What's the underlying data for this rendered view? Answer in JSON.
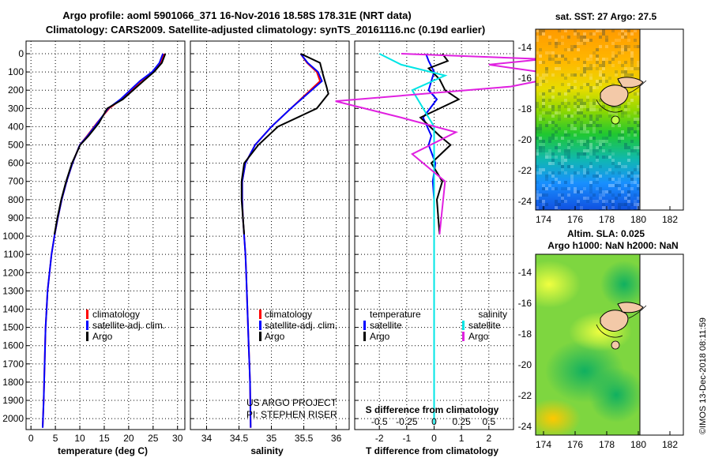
{
  "title": {
    "line1": "Argo profile: aoml 5901066_371 16-Nov-2016 18.58S 178.31E (NRT data)",
    "line2": "Climatology: CARS2009. Satellite-adjusted climatology: synTS_20161116.nc (0.19d earlier)"
  },
  "colors": {
    "climatology": "#ff0000",
    "satellite": "#0000ff",
    "argo": "#000000",
    "sat_salinity": "#00e5e5",
    "argo_salinity": "#e020e0"
  },
  "credits": {
    "project": "US ARGO PROJECT",
    "pi": "PI: STEPHEN RISER"
  },
  "watermark": "©IMOS 13-Dec-2018 08:11:59",
  "chart_data": [
    {
      "type": "line",
      "id": "temperature",
      "xlabel": "temperature (deg C)",
      "ylabel": "",
      "xlim": [
        -1,
        31.5
      ],
      "ylim": [
        2060,
        0
      ],
      "xticks": [
        0,
        5,
        10,
        15,
        20,
        25,
        30
      ],
      "yticks": [
        0,
        100,
        200,
        300,
        400,
        500,
        600,
        700,
        800,
        900,
        1000,
        1100,
        1200,
        1300,
        1400,
        1500,
        1600,
        1700,
        1800,
        1900,
        2000
      ],
      "legend": [
        "climatology",
        "satellite-adj. clim.",
        "Argo"
      ],
      "series": [
        {
          "name": "climatology",
          "x": [
            27.3,
            26.5,
            25.0,
            22.5,
            18.5,
            16.0,
            13.5,
            11.5,
            10.0,
            8.5,
            7.3,
            6.3,
            5.5,
            4.8,
            4.2,
            3.8,
            3.4,
            3.2,
            3.0,
            2.8,
            2.6,
            2.4
          ],
          "y": [
            0,
            50,
            100,
            150,
            250,
            300,
            380,
            450,
            500,
            600,
            700,
            800,
            900,
            1000,
            1100,
            1200,
            1300,
            1400,
            1500,
            1700,
            1900,
            2050
          ]
        },
        {
          "name": "satellite-adj. clim.",
          "x": [
            27.0,
            26.3,
            24.8,
            22.3,
            18.3,
            15.8,
            13.6,
            11.6,
            10.0,
            8.5,
            7.3,
            6.3,
            5.5,
            4.8,
            4.2,
            3.8,
            3.4,
            3.2,
            3.0,
            2.8,
            2.6,
            2.4
          ],
          "y": [
            0,
            50,
            100,
            150,
            250,
            300,
            380,
            450,
            500,
            600,
            700,
            800,
            900,
            1000,
            1100,
            1200,
            1300,
            1400,
            1500,
            1700,
            1900,
            2050
          ]
        },
        {
          "name": "Argo",
          "x": [
            27.5,
            26.8,
            25.2,
            23.0,
            18.8,
            15.6,
            13.9,
            11.8,
            10.1,
            8.4,
            7.2,
            6.2,
            5.4,
            4.8
          ],
          "y": [
            0,
            50,
            100,
            150,
            250,
            300,
            380,
            450,
            500,
            600,
            700,
            800,
            900,
            990
          ]
        }
      ]
    },
    {
      "type": "line",
      "id": "salinity",
      "xlabel": "salinity",
      "xlim": [
        33.75,
        36.2
      ],
      "ylim": [
        2060,
        0
      ],
      "xticks": [
        34,
        34.5,
        35,
        35.5,
        36
      ],
      "xticklabels": [
        "34",
        "34.5",
        "35",
        "35.5",
        "36"
      ],
      "legend": [
        "climatology",
        "satellite-adj. clim.",
        "Argo"
      ],
      "series": [
        {
          "name": "climatology",
          "x": [
            35.45,
            35.55,
            35.7,
            35.75,
            35.6,
            35.3,
            35.0,
            34.75,
            34.6,
            34.55,
            34.55,
            34.56,
            34.58,
            34.6,
            34.61,
            34.62,
            34.63,
            34.64,
            34.65,
            34.66,
            34.67,
            34.68
          ],
          "y": [
            0,
            50,
            100,
            150,
            200,
            300,
            400,
            500,
            600,
            700,
            800,
            900,
            1000,
            1100,
            1200,
            1300,
            1400,
            1500,
            1600,
            1700,
            1800,
            2050
          ]
        },
        {
          "name": "satellite-adj. clim.",
          "x": [
            35.45,
            35.56,
            35.72,
            35.78,
            35.62,
            35.3,
            35.0,
            34.75,
            34.6,
            34.55,
            34.55,
            34.56,
            34.58,
            34.6,
            34.61,
            34.62,
            34.63,
            34.64,
            34.65,
            34.66,
            34.67,
            34.68
          ],
          "y": [
            0,
            50,
            100,
            150,
            200,
            300,
            400,
            500,
            600,
            700,
            800,
            900,
            1000,
            1100,
            1200,
            1300,
            1400,
            1500,
            1600,
            1700,
            1800,
            2050
          ]
        },
        {
          "name": "Argo",
          "x": [
            35.45,
            35.75,
            35.8,
            35.85,
            35.88,
            35.7,
            35.1,
            34.8,
            34.58,
            34.54,
            34.54,
            34.56,
            34.58
          ],
          "y": [
            0,
            50,
            120,
            180,
            220,
            300,
            400,
            500,
            600,
            700,
            800,
            900,
            990
          ]
        }
      ]
    },
    {
      "type": "line",
      "id": "difference",
      "xlabel": "T difference from climatology",
      "xlabel_top": "S difference from climatology",
      "xlim": [
        -2.9,
        2.9
      ],
      "ylim": [
        2060,
        0
      ],
      "xticks": [
        -2,
        -1,
        0,
        1,
        2
      ],
      "xticklabels": [
        "-2",
        "-1",
        "0",
        "1",
        "2"
      ],
      "xticks_top": [
        -0.5,
        -0.25,
        0,
        0.25,
        0.5
      ],
      "xticklabels_top": [
        "-0.5",
        "-0.25",
        "0",
        "0.25",
        "0.5"
      ],
      "legend_left_title": "temperature",
      "legend_right_title": "salinity",
      "legend": [
        "satellite",
        "Argo",
        "satellite",
        "Argo"
      ],
      "series": [
        {
          "name": "T satellite",
          "x": [
            -0.3,
            -0.2,
            0.0,
            -0.1,
            -0.2,
            0.1,
            -0.4,
            -0.1,
            -0.2,
            0.05,
            -0.05,
            0.0,
            0.0
          ],
          "y": [
            0,
            40,
            100,
            150,
            200,
            250,
            350,
            450,
            500,
            600,
            700,
            800,
            990
          ]
        },
        {
          "name": "T Argo",
          "x": [
            0.3,
            0.5,
            -0.2,
            0.2,
            0.4,
            0.9,
            -0.5,
            0.2,
            0.6,
            -0.1,
            0.3,
            0.1,
            0.2
          ],
          "y": [
            0,
            40,
            80,
            140,
            200,
            250,
            350,
            450,
            500,
            600,
            700,
            800,
            990
          ]
        },
        {
          "name": "S satellite",
          "x": [
            -0.5,
            -0.3,
            0.1,
            -0.2,
            0.0,
            0.0,
            0.0,
            0.0,
            0.0,
            0.0
          ],
          "y": [
            0,
            60,
            120,
            200,
            400,
            600,
            1000,
            1400,
            1800,
            2030
          ]
        },
        {
          "name": "S Argo",
          "x": [
            -0.3,
            1.0,
            0.5,
            1.2,
            0.7,
            -0.9,
            -0.3,
            0.2,
            -0.2,
            0.1,
            0.05
          ],
          "y": [
            0,
            30,
            60,
            120,
            180,
            260,
            350,
            430,
            550,
            700,
            990
          ]
        }
      ]
    }
  ],
  "maps": [
    {
      "id": "sst-map",
      "title": "sat. SST: 27 Argo: 27.5",
      "xticks": [
        "174",
        "176",
        "178",
        "180",
        "182"
      ],
      "yticks": [
        "-14",
        "-16",
        "-18",
        "-20",
        "-22",
        "-24"
      ]
    },
    {
      "id": "sla-map",
      "title_line1": "Altim. SLA: 0.025",
      "title_line2": "Argo h1000: NaN h2000: NaN",
      "xticks": [
        "174",
        "176",
        "178",
        "180",
        "182"
      ],
      "yticks": [
        "-14",
        "-16",
        "-18",
        "-20",
        "-22",
        "-24"
      ]
    }
  ]
}
